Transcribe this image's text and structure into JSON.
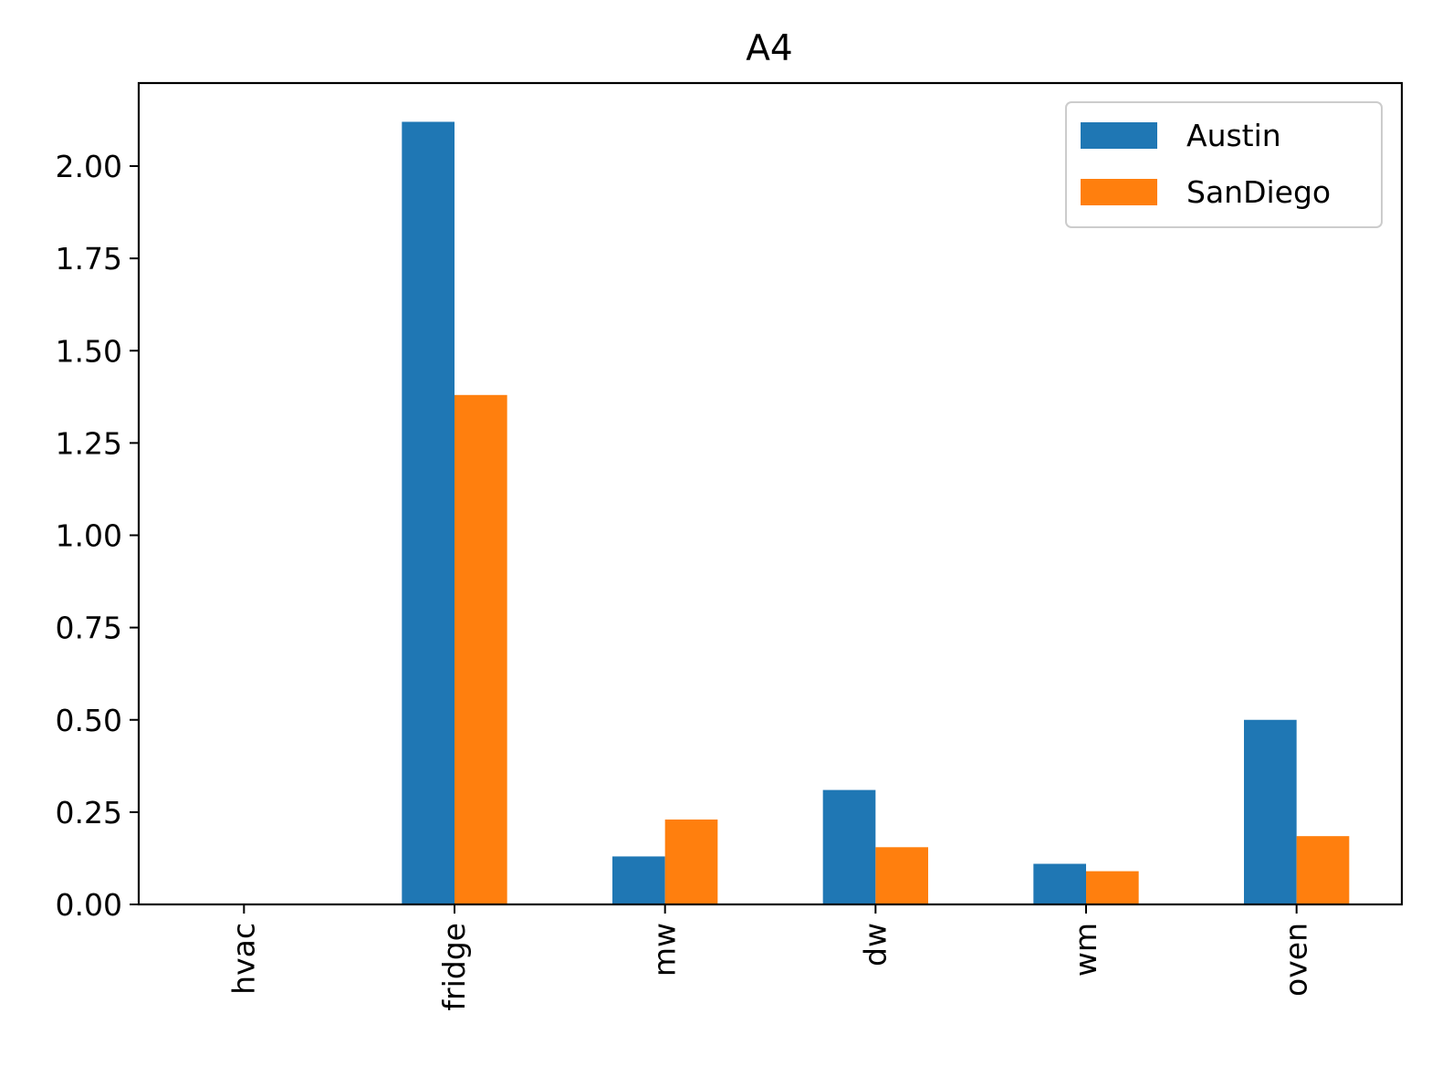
{
  "chart_data": {
    "type": "bar",
    "title": "A4",
    "xlabel": "",
    "ylabel": "",
    "categories": [
      "hvac",
      "fridge",
      "mw",
      "dw",
      "wm",
      "oven"
    ],
    "series": [
      {
        "name": "Austin",
        "color": "#1f77b4",
        "values": [
          0,
          2.12,
          0.13,
          0.31,
          0.11,
          0.5
        ]
      },
      {
        "name": "SanDiego",
        "color": "#ff7f0e",
        "values": [
          0,
          1.38,
          0.23,
          0.155,
          0.09,
          0.185
        ]
      }
    ],
    "ylim": [
      0,
      2.225
    ],
    "yticks": [
      0.0,
      0.25,
      0.5,
      0.75,
      1.0,
      1.25,
      1.5,
      1.75,
      2.0
    ],
    "ytick_labels": [
      "0.00",
      "0.25",
      "0.50",
      "0.75",
      "1.00",
      "1.25",
      "1.50",
      "1.75",
      "2.00"
    ],
    "x_tick_rotation": "vertical",
    "grid": false,
    "legend_position": "top-right"
  }
}
